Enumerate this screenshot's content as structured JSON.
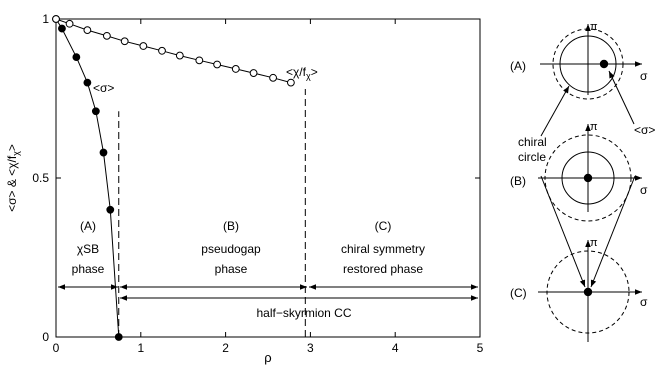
{
  "chart_data": {
    "type": "line",
    "xlabel": "ρ",
    "ylabel": "<σ> & <χ/f",
    "ylabel_sub": "χ",
    "ylabel_end": ">",
    "xlim": [
      0,
      5
    ],
    "ylim": [
      0,
      1
    ],
    "x_ticks": [
      {
        "value": 0,
        "label": "0"
      },
      {
        "value": 1,
        "label": "1"
      },
      {
        "value": 2,
        "label": "2"
      },
      {
        "value": 3,
        "label": "3"
      },
      {
        "value": 4,
        "label": "4"
      },
      {
        "value": 5,
        "label": "5"
      }
    ],
    "y_ticks": [
      {
        "value": 0,
        "label": "0"
      },
      {
        "value": 0.5,
        "label": "0.5"
      },
      {
        "value": 1,
        "label": "1"
      }
    ],
    "series": [
      {
        "name": "<σ>",
        "marker": "filled-circle",
        "x": [
          0,
          0.07,
          0.24,
          0.37,
          0.47,
          0.56,
          0.64,
          0.74
        ],
        "y": [
          1.0,
          0.97,
          0.88,
          0.8,
          0.71,
          0.58,
          0.4,
          0.0
        ]
      },
      {
        "name": "<χ/f",
        "name_sub": "χ",
        "name_end": ">",
        "marker": "open-circle",
        "x": [
          0,
          0.16,
          0.37,
          0.6,
          0.81,
          1.03,
          1.25,
          1.46,
          1.69,
          1.9,
          2.12,
          2.33,
          2.56,
          2.77
        ],
        "y": [
          1.0,
          0.985,
          0.965,
          0.947,
          0.93,
          0.915,
          0.9,
          0.885,
          0.87,
          0.857,
          0.843,
          0.83,
          0.815,
          0.8
        ]
      }
    ],
    "vlines": [
      0.74,
      2.94
    ],
    "phases": [
      {
        "letter": "(A)",
        "line1": "χSB",
        "line2": "phase"
      },
      {
        "letter": "(B)",
        "line1": "pseudogap",
        "line2": "phase"
      },
      {
        "letter": "(C)",
        "line1": "chiral symmetry",
        "line2": "restored phase"
      }
    ],
    "hs_label": "half−skyrmion CC"
  },
  "schematic": {
    "rows": [
      {
        "label": "(A)",
        "axis_y": "π",
        "axis_x": "σ"
      },
      {
        "label": "(B)",
        "axis_y": "π",
        "axis_x": "σ"
      },
      {
        "label": "(C)",
        "axis_y": "π",
        "axis_x": "σ"
      }
    ],
    "chiral_circle_line1": "chiral",
    "chiral_circle_line2": "circle",
    "sigma_callout": "<σ>"
  },
  "colors": {
    "ink": "#000000",
    "background": "#ffffff"
  }
}
